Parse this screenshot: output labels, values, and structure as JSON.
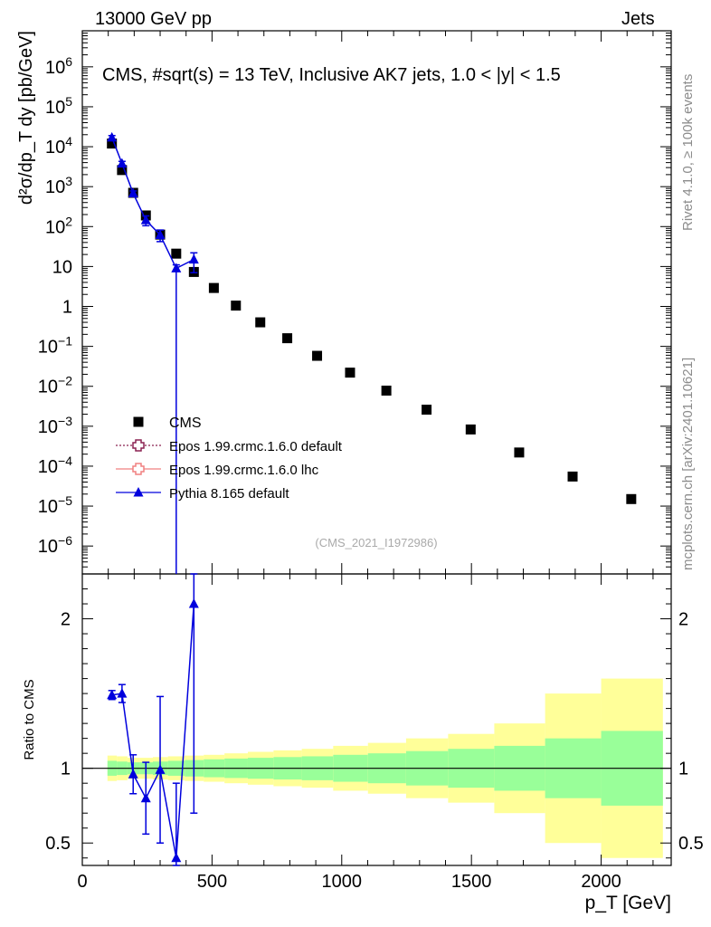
{
  "header": {
    "left": "13000 GeV pp",
    "right": "Jets"
  },
  "side_labels": {
    "rivet": "Rivet 4.1.0, ≥ 100k events",
    "mcplots": "mcplots.cern.ch [arXiv:2401.10621]"
  },
  "chart_data": {
    "type": "scatter",
    "title": "CMS, #sqrt(s) = 13 TeV, Inclusive AK7 jets, 1.0 < |y| < 1.5",
    "analysis_id": "(CMS_2021_I1972986)",
    "xlabel": "p_T [GeV]",
    "ylabel": "d²σ/dp_T dy [pb/GeV]",
    "ratio_ylabel": "Ratio to CMS",
    "xlim": [
      0,
      2270
    ],
    "ylim_log": [
      2e-07,
      8000000.0
    ],
    "ratio_ylim": [
      0.35,
      2.3
    ],
    "x_ticks": [
      0,
      500,
      1000,
      1500,
      2000
    ],
    "y_tick_labels": [
      "10^-6",
      "10^-5",
      "10^-4",
      "10^-3",
      "10^-2",
      "10^-1",
      "1",
      "10",
      "10^2",
      "10^3",
      "10^4",
      "10^5",
      "10^6"
    ],
    "ratio_ticks": [
      0.5,
      1,
      2
    ],
    "legend": [
      {
        "label": "CMS",
        "marker": "square",
        "color": "#000000"
      },
      {
        "label": "Epos 1.99.crmc.1.6.0 default",
        "marker": "open-cross",
        "color": "#8b2252"
      },
      {
        "label": "Epos 1.99.crmc.1.6.0 lhc",
        "marker": "open-cross",
        "color": "#f08080"
      },
      {
        "label": "Pythia 8.165 default",
        "marker": "triangle",
        "color": "#0000dd"
      }
    ],
    "cms": {
      "x": [
        114,
        153,
        196,
        245,
        300,
        362,
        430,
        507,
        592,
        686,
        790,
        905,
        1032,
        1172,
        1327,
        1497,
        1684,
        1890,
        2116
      ],
      "y": [
        12000,
        2600,
        700,
        190,
        63,
        21,
        7.3,
        2.9,
        1.05,
        0.4,
        0.16,
        0.058,
        0.022,
        0.0078,
        0.0026,
        0.00083,
        0.00022,
        5.5e-05,
        1.5e-05
      ]
    },
    "cms_bins": [
      97,
      133,
      174,
      220,
      272,
      330,
      395,
      468,
      548,
      638,
      737,
      846,
      967,
      1101,
      1248,
      1410,
      1588,
      1784,
      2000,
      2238
    ],
    "cms_stat_band": [
      0.05,
      0.045,
      0.04,
      0.04,
      0.045,
      0.05,
      0.055,
      0.06,
      0.065,
      0.07,
      0.075,
      0.08,
      0.09,
      0.1,
      0.115,
      0.13,
      0.15,
      0.2,
      0.25
    ],
    "cms_total_band": [
      0.085,
      0.08,
      0.07,
      0.07,
      0.075,
      0.08,
      0.085,
      0.09,
      0.1,
      0.11,
      0.12,
      0.13,
      0.15,
      0.17,
      0.2,
      0.23,
      0.3,
      0.5,
      0.6
    ],
    "pythia": {
      "x": [
        114,
        153,
        196,
        245,
        300,
        362,
        430
      ],
      "y": [
        17000,
        3800,
        680,
        145,
        62,
        9,
        15
      ],
      "y_err_low": [
        2000,
        500,
        100,
        40,
        20,
        9,
        8
      ],
      "y_err_high": [
        2000,
        500,
        100,
        40,
        20,
        2,
        7
      ]
    },
    "pythia_ratio": {
      "x": [
        114,
        153,
        196,
        245,
        300,
        362,
        430
      ],
      "values": [
        1.49,
        1.5,
        0.96,
        0.8,
        0.99,
        0.4,
        2.1
      ],
      "err": [
        0.03,
        0.06,
        0.13,
        0.24,
        0.49,
        0.5,
        1.4
      ]
    }
  }
}
